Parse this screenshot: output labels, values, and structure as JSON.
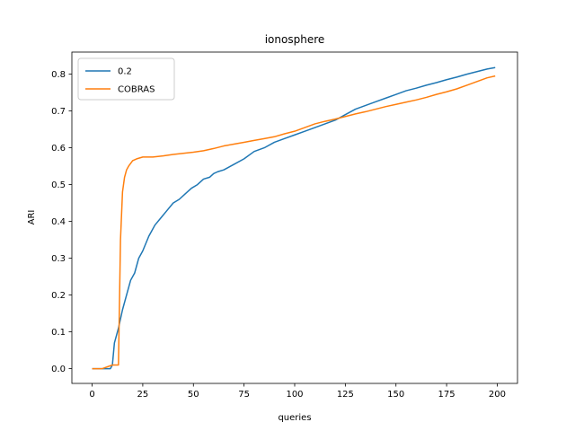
{
  "chart_data": {
    "type": "line",
    "title": "ionosphere",
    "xlabel": "queries",
    "ylabel": "ARI",
    "xlim": [
      -10,
      210
    ],
    "ylim": [
      -0.04,
      0.86
    ],
    "xticks": [
      0,
      25,
      50,
      75,
      100,
      125,
      150,
      175,
      200
    ],
    "yticks": [
      0.0,
      0.1,
      0.2,
      0.3,
      0.4,
      0.5,
      0.6,
      0.7,
      0.8
    ],
    "grid": false,
    "legend": {
      "position": "top-left"
    },
    "series": [
      {
        "name": "0.2",
        "color": "#1f77b4",
        "x": [
          0,
          5,
          9,
          10,
          11,
          13,
          15,
          17,
          19,
          21,
          23,
          25,
          28,
          31,
          34,
          37,
          40,
          43,
          46,
          49,
          52,
          55,
          58,
          60,
          62,
          65,
          70,
          75,
          80,
          85,
          90,
          95,
          100,
          105,
          110,
          115,
          120,
          125,
          130,
          135,
          140,
          145,
          150,
          155,
          160,
          165,
          170,
          175,
          180,
          185,
          190,
          195,
          199
        ],
        "y": [
          0.0,
          0.0,
          0.0,
          0.01,
          0.07,
          0.11,
          0.16,
          0.2,
          0.24,
          0.26,
          0.3,
          0.32,
          0.36,
          0.39,
          0.41,
          0.43,
          0.45,
          0.46,
          0.475,
          0.49,
          0.5,
          0.515,
          0.52,
          0.53,
          0.535,
          0.54,
          0.555,
          0.57,
          0.59,
          0.6,
          0.615,
          0.625,
          0.635,
          0.645,
          0.655,
          0.665,
          0.675,
          0.69,
          0.705,
          0.715,
          0.725,
          0.735,
          0.745,
          0.755,
          0.762,
          0.77,
          0.777,
          0.785,
          0.792,
          0.8,
          0.807,
          0.814,
          0.818
        ]
      },
      {
        "name": "COBRAS",
        "color": "#ff7f0e",
        "x": [
          0,
          5,
          10,
          12,
          13,
          14,
          15,
          16,
          17,
          18,
          20,
          22,
          25,
          28,
          30,
          35,
          40,
          45,
          50,
          55,
          60,
          65,
          70,
          75,
          80,
          85,
          90,
          95,
          100,
          105,
          110,
          115,
          120,
          125,
          130,
          135,
          140,
          145,
          150,
          155,
          160,
          165,
          170,
          175,
          180,
          185,
          190,
          195,
          199
        ],
        "y": [
          0.0,
          0.0,
          0.01,
          0.01,
          0.01,
          0.35,
          0.48,
          0.52,
          0.54,
          0.55,
          0.565,
          0.57,
          0.575,
          0.575,
          0.575,
          0.578,
          0.582,
          0.585,
          0.588,
          0.592,
          0.598,
          0.605,
          0.61,
          0.615,
          0.62,
          0.625,
          0.63,
          0.638,
          0.645,
          0.655,
          0.665,
          0.672,
          0.678,
          0.685,
          0.692,
          0.698,
          0.705,
          0.712,
          0.718,
          0.724,
          0.73,
          0.737,
          0.745,
          0.752,
          0.76,
          0.77,
          0.78,
          0.79,
          0.795
        ]
      }
    ]
  }
}
